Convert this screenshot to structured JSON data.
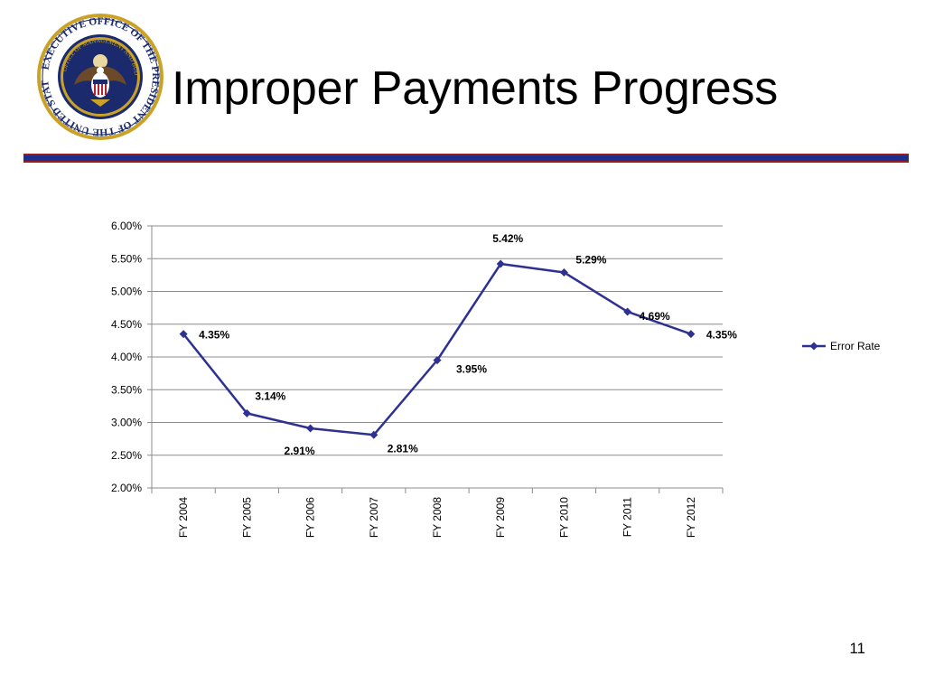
{
  "slide": {
    "title": "Improper Payments Progress",
    "page_number": "11"
  },
  "seal": {
    "text_top": "EXECUTIVE OFFICE OF THE PRESIDENT OF THE UNITED STATES",
    "text_inner": "OFFICE OF MANAGEMENT AND BUDGET",
    "icon": "eagle-seal-icon"
  },
  "colors": {
    "series": "#2e3192",
    "divider_blue": "#1d2f8c",
    "divider_red": "#9b1b1b",
    "seal_gold": "#c9a227",
    "seal_navy": "#1a2a6c"
  },
  "chart_data": {
    "type": "line",
    "categories": [
      "FY 2004",
      "FY 2005",
      "FY 2006",
      "FY 2007",
      "FY 2008",
      "FY 2009",
      "FY 2010",
      "FY 2011",
      "FY 2012"
    ],
    "series": [
      {
        "name": "Error Rate",
        "values": [
          4.35,
          3.14,
          2.91,
          2.81,
          3.95,
          5.42,
          5.29,
          4.69,
          4.35
        ],
        "labels": [
          "4.35%",
          "3.14%",
          "2.91%",
          "2.81%",
          "3.95%",
          "5.42%",
          "5.29%",
          "4.69%",
          "4.35%"
        ]
      }
    ],
    "ylim": [
      2.0,
      6.0
    ],
    "yticks": [
      "2.00%",
      "2.50%",
      "3.00%",
      "3.50%",
      "4.00%",
      "4.50%",
      "5.00%",
      "5.50%",
      "6.00%"
    ],
    "grid": true,
    "legend": "right"
  }
}
